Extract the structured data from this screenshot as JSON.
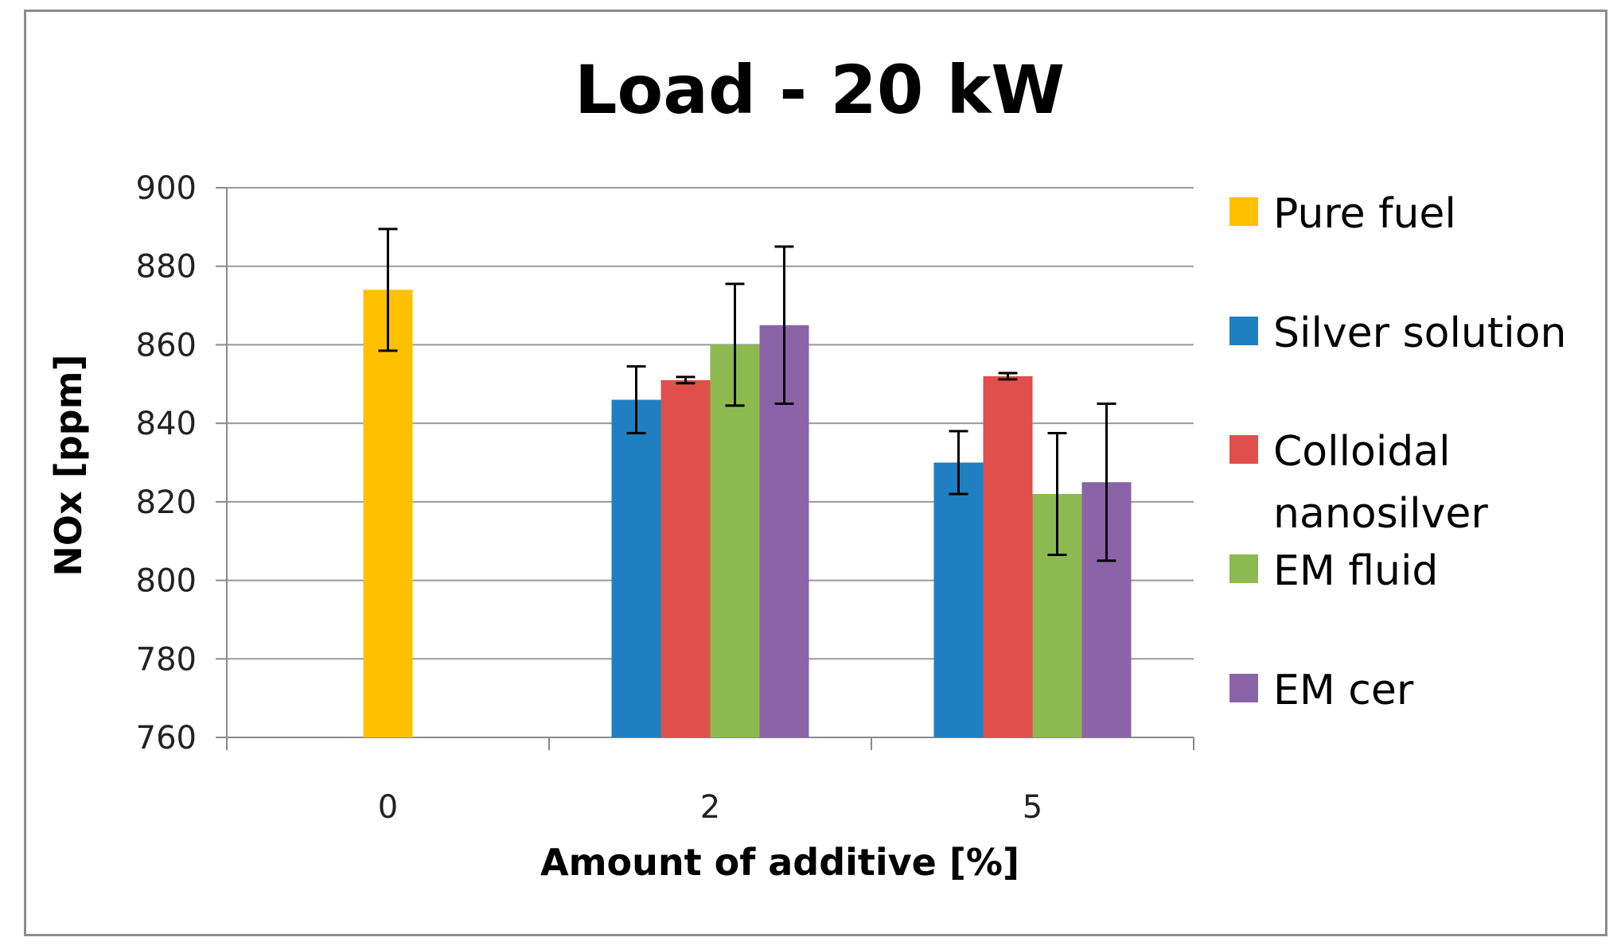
{
  "chart_data": {
    "type": "bar",
    "title": "Load - 20 kW",
    "xlabel": "Amount of additive [%]",
    "ylabel": "NOx [ppm]",
    "ylim": [
      760,
      900
    ],
    "yticks": [
      760,
      780,
      800,
      820,
      840,
      860,
      880,
      900
    ],
    "categories": [
      "0",
      "2",
      "5"
    ],
    "grid": true,
    "legend_position": "right",
    "series": [
      {
        "name": "Pure fuel",
        "color": "#FFC000",
        "values": [
          874,
          null,
          null
        ],
        "errors": [
          15.5,
          null,
          null
        ]
      },
      {
        "name": "Silver solution",
        "color": "#1F7FC1",
        "values": [
          null,
          846,
          830
        ],
        "errors": [
          null,
          8.5,
          8
        ]
      },
      {
        "name": "Colloidal nanosilver",
        "legend_lines": [
          "Colloidal",
          "nanosilver"
        ],
        "color": "#E04F4C",
        "values": [
          null,
          851,
          852
        ],
        "errors": [
          null,
          0.8,
          0.8
        ]
      },
      {
        "name": "EM fluid",
        "color": "#8CBA50",
        "values": [
          null,
          860,
          822
        ],
        "errors": [
          null,
          15.5,
          15.5
        ]
      },
      {
        "name": "EM cer",
        "color": "#8B64A8",
        "values": [
          null,
          865,
          825
        ],
        "errors": [
          null,
          20,
          20
        ]
      }
    ]
  }
}
